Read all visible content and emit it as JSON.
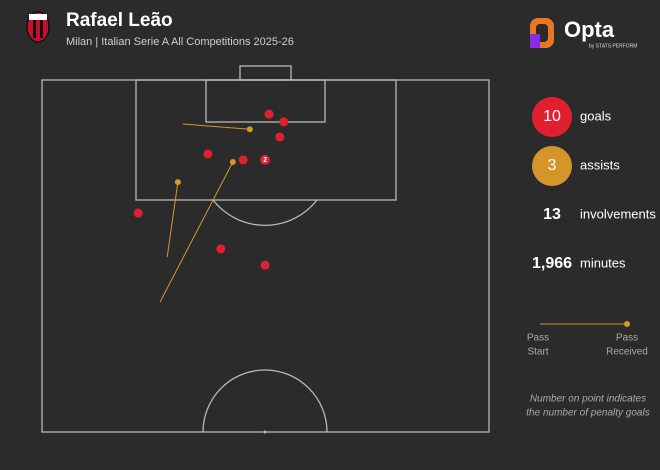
{
  "chart_data": {
    "type": "shot-map",
    "title": "Rafael Leão",
    "subtitle": "Milan | Italian Serie A All Competitions 2025-26",
    "brand": "Opta",
    "brand_sub": "by STATS PERFORM",
    "xlim": [
      0,
      100
    ],
    "ylim": [
      0,
      100
    ],
    "goal_color": "#e0202e",
    "assist_color": "#d4962a",
    "goals": {
      "x": [
        50.8,
        54.1,
        53.2,
        37.1,
        45.0,
        21.5,
        40.0,
        49.9
      ],
      "y": [
        9.7,
        11.9,
        16.2,
        21.0,
        22.7,
        37.8,
        48.0,
        52.6
      ]
    },
    "penalty_goals": {
      "x": 49.9,
      "y": 22.7,
      "count": 2
    },
    "assists": {
      "start_x": [
        31.5,
        28.0,
        26.4
      ],
      "start_y": [
        12.5,
        50.3,
        63.1
      ],
      "end_x": [
        46.5,
        30.4,
        42.7
      ],
      "end_y": [
        14.0,
        29.0,
        23.3
      ]
    },
    "stats": [
      {
        "value": "10",
        "label": "goals"
      },
      {
        "value": "3",
        "label": "assists"
      },
      {
        "value": "13",
        "label": "involvements"
      },
      {
        "value": "1,966",
        "label": "minutes"
      }
    ],
    "legend": {
      "start": [
        "Pass",
        "Start"
      ],
      "end": [
        "Pass",
        "Received"
      ]
    },
    "note": [
      "Number on point indicates",
      "the number of penalty goals"
    ]
  }
}
